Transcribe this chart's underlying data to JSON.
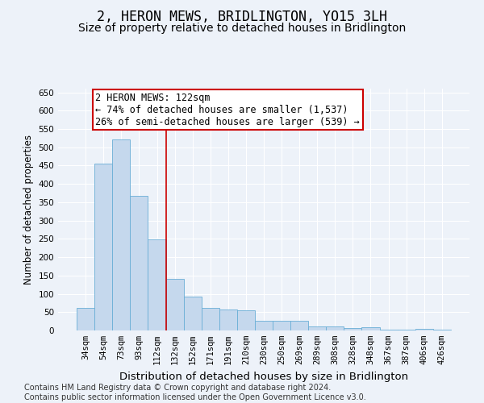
{
  "title": "2, HERON MEWS, BRIDLINGTON, YO15 3LH",
  "subtitle": "Size of property relative to detached houses in Bridlington",
  "xlabel": "Distribution of detached houses by size in Bridlington",
  "ylabel": "Number of detached properties",
  "categories": [
    "34sqm",
    "54sqm",
    "73sqm",
    "93sqm",
    "112sqm",
    "132sqm",
    "152sqm",
    "171sqm",
    "191sqm",
    "210sqm",
    "230sqm",
    "250sqm",
    "269sqm",
    "289sqm",
    "308sqm",
    "328sqm",
    "348sqm",
    "367sqm",
    "387sqm",
    "406sqm",
    "426sqm"
  ],
  "values": [
    62,
    456,
    522,
    368,
    248,
    140,
    92,
    62,
    57,
    54,
    27,
    26,
    26,
    11,
    12,
    6,
    9,
    3,
    3,
    5,
    3
  ],
  "bar_color": "#c5d8ed",
  "bar_edge_color": "#6aaed6",
  "vline_x": 4.5,
  "vline_color": "#cc0000",
  "annotation_title": "2 HERON MEWS: 122sqm",
  "annotation_line1": "← 74% of detached houses are smaller (1,537)",
  "annotation_line2": "26% of semi-detached houses are larger (539) →",
  "annotation_box_color": "#ffffff",
  "annotation_box_edge_color": "#cc0000",
  "ylim": [
    0,
    660
  ],
  "yticks": [
    0,
    50,
    100,
    150,
    200,
    250,
    300,
    350,
    400,
    450,
    500,
    550,
    600,
    650
  ],
  "footer_line1": "Contains HM Land Registry data © Crown copyright and database right 2024.",
  "footer_line2": "Contains public sector information licensed under the Open Government Licence v3.0.",
  "bg_color": "#edf2f9",
  "plot_bg_color": "#edf2f9",
  "grid_color": "#ffffff",
  "title_fontsize": 12,
  "subtitle_fontsize": 10,
  "xlabel_fontsize": 9.5,
  "ylabel_fontsize": 8.5,
  "tick_fontsize": 7.5,
  "footer_fontsize": 7,
  "annotation_fontsize": 8.5
}
